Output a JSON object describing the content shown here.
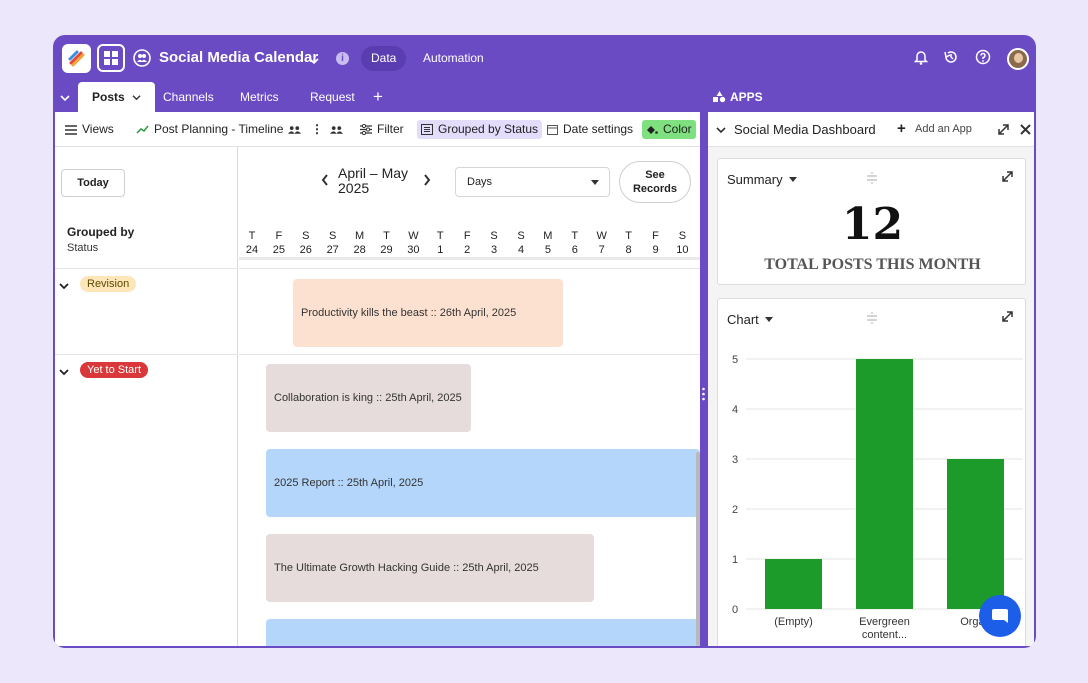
{
  "header": {
    "app_title": "Social Media Calendar",
    "mode_tabs": [
      "Data",
      "Automation"
    ]
  },
  "tabs": [
    {
      "label": "Posts",
      "active": true
    },
    {
      "label": "Channels"
    },
    {
      "label": "Metrics"
    },
    {
      "label": "Request"
    }
  ],
  "toolbar": {
    "views": "Views",
    "view_name": "Post Planning - Timeline",
    "filter": "Filter",
    "grouped": "Grouped by Status",
    "date_settings": "Date settings",
    "color": "Color"
  },
  "timeline": {
    "today_label": "Today",
    "range_line1": "April – May",
    "range_line2": "2025",
    "scale": "Days",
    "see_records_line1": "See",
    "see_records_line2": "Records",
    "grouped_by": "Grouped by",
    "grouped_field": "Status",
    "days": [
      {
        "d": "T",
        "n": "24"
      },
      {
        "d": "F",
        "n": "25"
      },
      {
        "d": "S",
        "n": "26"
      },
      {
        "d": "S",
        "n": "27"
      },
      {
        "d": "M",
        "n": "28"
      },
      {
        "d": "T",
        "n": "29"
      },
      {
        "d": "W",
        "n": "30"
      },
      {
        "d": "T",
        "n": "1"
      },
      {
        "d": "F",
        "n": "2"
      },
      {
        "d": "S",
        "n": "3"
      },
      {
        "d": "S",
        "n": "4"
      },
      {
        "d": "M",
        "n": "5"
      },
      {
        "d": "T",
        "n": "6"
      },
      {
        "d": "W",
        "n": "7"
      },
      {
        "d": "T",
        "n": "8"
      },
      {
        "d": "F",
        "n": "9"
      },
      {
        "d": "S",
        "n": "10"
      }
    ],
    "groups": [
      {
        "label": "Revision",
        "color": "#fde7b8"
      },
      {
        "label": "Yet to Start",
        "color": "#d9373a"
      }
    ],
    "events": [
      {
        "title": "Productivity kills the beast :: 26th April, 2025",
        "color": "#fde1d0"
      },
      {
        "title": "Collaboration is king :: 25th April, 2025",
        "color": "#e6dcdc"
      },
      {
        "title": "2025 Report :: 25th April, 2025",
        "color": "#b5d6fb"
      },
      {
        "title": "The Ultimate Growth Hacking Guide :: 25th April, 2025",
        "color": "#e6dcdc"
      },
      {
        "title": "",
        "color": "#b5d6fb"
      }
    ]
  },
  "apps_panel": {
    "label": "APPS",
    "dashboard_name": "Social Media Dashboard",
    "add_app": "Add an App",
    "summary": {
      "title": "Summary",
      "value": "12",
      "label": "TOTAL POSTS THIS MONTH"
    },
    "chart_card": {
      "title": "Chart"
    }
  },
  "chart_data": {
    "type": "bar",
    "categories": [
      "(Empty)",
      "Evergreen content...",
      "Organ"
    ],
    "values": [
      1,
      5,
      3
    ],
    "ylim": [
      0,
      5
    ],
    "yticks": [
      0,
      1,
      2,
      3,
      4,
      5
    ],
    "grid": true,
    "bar_color": "#1c9a2a"
  },
  "colors": {
    "brand": "#6a4bc4",
    "chat_fab": "#1c5ee8"
  }
}
